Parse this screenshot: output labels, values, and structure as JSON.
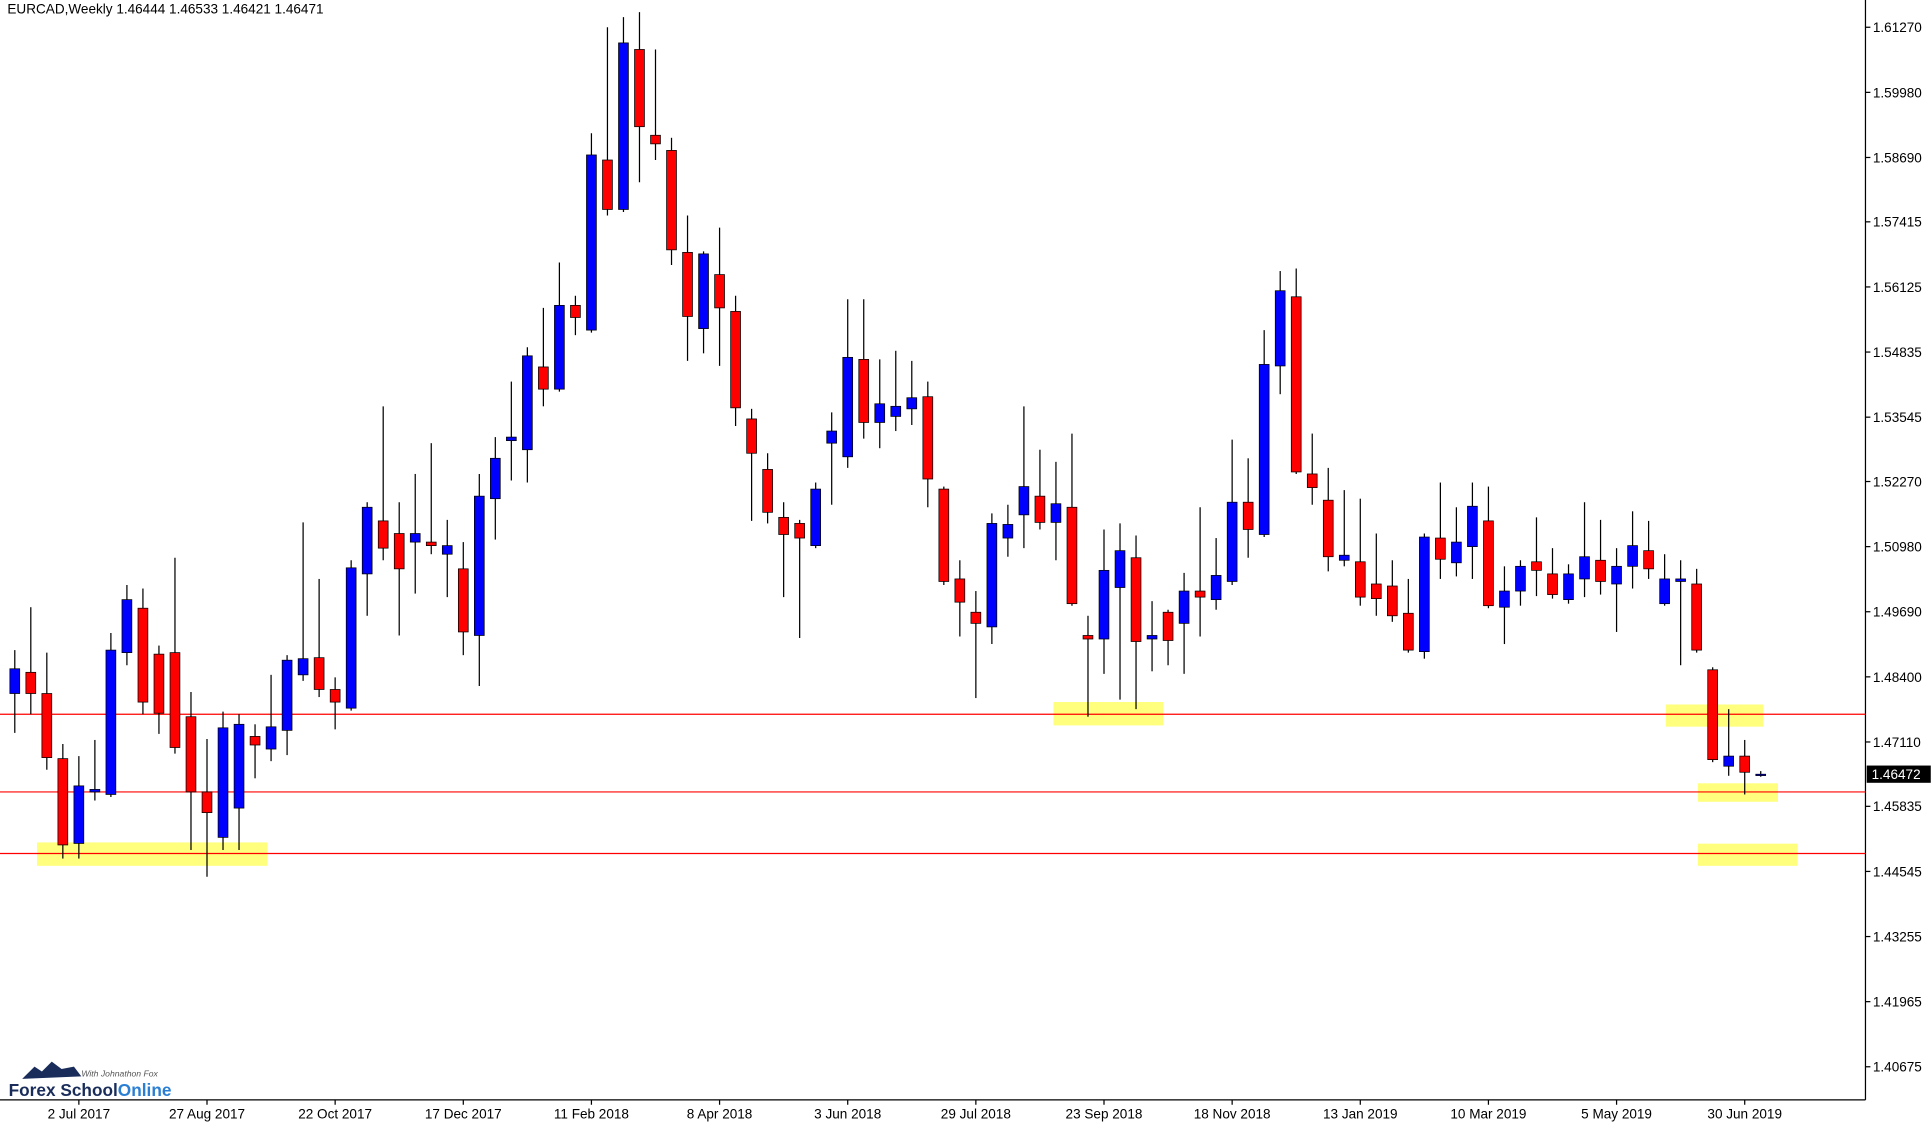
{
  "chart_data": {
    "type": "candlestick",
    "title": "EURCAD,Weekly  1.46444 1.46533 1.46421 1.46471",
    "up_color": "#0000ff",
    "down_color": "#ff0000",
    "wick_color": "#000000",
    "level_color": "#ff0000",
    "categories": [
      null,
      null,
      null,
      null,
      "2 Jul 2017",
      null,
      null,
      null,
      null,
      null,
      null,
      null,
      "27 Aug 2017",
      null,
      null,
      null,
      null,
      null,
      null,
      null,
      "22 Oct 2017",
      null,
      null,
      null,
      null,
      null,
      null,
      null,
      "17 Dec 2017",
      null,
      null,
      null,
      null,
      null,
      null,
      null,
      "11 Feb 2018",
      null,
      null,
      null,
      null,
      null,
      null,
      null,
      "8 Apr 2018",
      null,
      null,
      null,
      null,
      null,
      null,
      null,
      "3 Jun 2018",
      null,
      null,
      null,
      null,
      null,
      null,
      null,
      "29 Jul 2018",
      null,
      null,
      null,
      null,
      null,
      null,
      null,
      "23 Sep 2018",
      null,
      null,
      null,
      null,
      null,
      null,
      null,
      "18 Nov 2018",
      null,
      null,
      null,
      null,
      null,
      null,
      null,
      "13 Jan 2019",
      null,
      null,
      null,
      null,
      null,
      null,
      null,
      "10 Mar 2019",
      null,
      null,
      null,
      null,
      null,
      null,
      null,
      "5 May 2019",
      null,
      null,
      null,
      null,
      null,
      null,
      null,
      "30 Jun 2019",
      null
    ],
    "ohlc": [
      [
        1.4807,
        1.4893,
        1.4729,
        1.4856
      ],
      [
        1.4849,
        1.4978,
        1.4766,
        1.4807
      ],
      [
        1.4807,
        1.4888,
        1.4656,
        1.468
      ],
      [
        1.4678,
        1.4707,
        1.448,
        1.4507
      ],
      [
        1.451,
        1.4683,
        1.448,
        1.4624
      ],
      [
        1.4612,
        1.4715,
        1.4595,
        1.4617
      ],
      [
        1.4607,
        1.4927,
        1.4602,
        1.4893
      ],
      [
        1.4888,
        1.5022,
        1.4863,
        1.4993
      ],
      [
        1.4976,
        1.5015,
        1.4766,
        1.479
      ],
      [
        1.4885,
        1.4902,
        1.4727,
        1.4768
      ],
      [
        1.4888,
        1.5076,
        1.4688,
        1.47
      ],
      [
        1.4761,
        1.481,
        1.4497,
        1.4612
      ],
      [
        1.4612,
        1.4717,
        1.4444,
        1.4571
      ],
      [
        1.4522,
        1.4771,
        1.4497,
        1.4739
      ],
      [
        1.458,
        1.4766,
        1.4497,
        1.4746
      ],
      [
        1.4722,
        1.4746,
        1.4639,
        1.4705
      ],
      [
        1.4697,
        1.4844,
        1.4673,
        1.4741
      ],
      [
        1.4734,
        1.4883,
        1.4685,
        1.4873
      ],
      [
        1.4844,
        1.5146,
        1.4832,
        1.4876
      ],
      [
        1.4878,
        1.5034,
        1.48,
        1.4815
      ],
      [
        1.4815,
        1.4839,
        1.4736,
        1.479
      ],
      [
        1.4778,
        1.5071,
        1.4773,
        1.5056
      ],
      [
        1.5044,
        1.5186,
        1.4961,
        1.5176
      ],
      [
        1.5149,
        1.5376,
        1.5071,
        1.5095
      ],
      [
        1.5124,
        1.5186,
        1.4922,
        1.5054
      ],
      [
        1.5107,
        1.5242,
        1.5005,
        1.5124
      ],
      [
        1.5107,
        1.5303,
        1.5083,
        1.51
      ],
      [
        1.5083,
        1.5151,
        1.4998,
        1.51
      ],
      [
        1.5054,
        1.5107,
        1.4883,
        1.4929
      ],
      [
        1.4922,
        1.5242,
        1.4822,
        1.5198
      ],
      [
        1.5193,
        1.5315,
        1.5112,
        1.5273
      ],
      [
        1.5308,
        1.5425,
        1.5229,
        1.5315
      ],
      [
        1.529,
        1.5493,
        1.5225,
        1.5476
      ],
      [
        1.5454,
        1.5571,
        1.5376,
        1.541
      ],
      [
        1.541,
        1.5661,
        1.5405,
        1.5576
      ],
      [
        1.5576,
        1.5595,
        1.5517,
        1.5552
      ],
      [
        1.5527,
        1.5917,
        1.5522,
        1.5874
      ],
      [
        1.5864,
        1.6127,
        1.5754,
        1.5766
      ],
      [
        1.5766,
        1.6147,
        1.5761,
        1.6096
      ],
      [
        1.6083,
        1.6157,
        1.582,
        1.593
      ],
      [
        1.5913,
        1.6083,
        1.5864,
        1.5896
      ],
      [
        1.5883,
        1.5908,
        1.5656,
        1.5686
      ],
      [
        1.5681,
        1.5754,
        1.5466,
        1.5554
      ],
      [
        1.553,
        1.5683,
        1.5481,
        1.5678
      ],
      [
        1.5637,
        1.573,
        1.5456,
        1.5571
      ],
      [
        1.5564,
        1.5595,
        1.5337,
        1.5373
      ],
      [
        1.5351,
        1.5371,
        1.5149,
        1.5283
      ],
      [
        1.5251,
        1.5283,
        1.5144,
        1.5166
      ],
      [
        1.5156,
        1.5186,
        1.4998,
        1.5122
      ],
      [
        1.5144,
        1.5151,
        1.4917,
        1.5115
      ],
      [
        1.51,
        1.5225,
        1.5095,
        1.5212
      ],
      [
        1.5303,
        1.5364,
        1.5181,
        1.5327
      ],
      [
        1.5276,
        1.5588,
        1.5254,
        1.5473
      ],
      [
        1.5469,
        1.5588,
        1.5312,
        1.5344
      ],
      [
        1.5344,
        1.5469,
        1.5293,
        1.5381
      ],
      [
        1.5356,
        1.5486,
        1.5327,
        1.5376
      ],
      [
        1.5371,
        1.5466,
        1.5339,
        1.5393
      ],
      [
        1.5395,
        1.5425,
        1.5176,
        1.5232
      ],
      [
        1.5212,
        1.5217,
        1.5022,
        1.5029
      ],
      [
        1.5034,
        1.5071,
        1.492,
        1.4988
      ],
      [
        1.4968,
        1.501,
        1.4798,
        1.4946
      ],
      [
        1.4939,
        1.5164,
        1.4905,
        1.5144
      ],
      [
        1.5115,
        1.5181,
        1.5078,
        1.5142
      ],
      [
        1.5161,
        1.5376,
        1.5095,
        1.5217
      ],
      [
        1.5198,
        1.529,
        1.5132,
        1.5146
      ],
      [
        1.5146,
        1.5266,
        1.5071,
        1.5183
      ],
      [
        1.5176,
        1.5322,
        1.4981,
        1.4985
      ],
      [
        1.4922,
        1.4961,
        1.4761,
        1.4915
      ],
      [
        1.4915,
        1.5132,
        1.4846,
        1.5051
      ],
      [
        1.5017,
        1.5144,
        1.4795,
        1.509
      ],
      [
        1.5076,
        1.512,
        1.4776,
        1.491
      ],
      [
        1.4915,
        1.499,
        1.4851,
        1.4922
      ],
      [
        1.4968,
        1.4973,
        1.4863,
        1.4912
      ],
      [
        1.4946,
        1.5046,
        1.4846,
        1.501
      ],
      [
        1.501,
        1.5176,
        1.492,
        1.4998
      ],
      [
        1.4993,
        1.5115,
        1.4973,
        1.5041
      ],
      [
        1.5029,
        1.531,
        1.5022,
        1.5186
      ],
      [
        1.5186,
        1.5273,
        1.5076,
        1.5132
      ],
      [
        1.5122,
        1.5527,
        1.5117,
        1.5459
      ],
      [
        1.5456,
        1.5644,
        1.54,
        1.5605
      ],
      [
        1.5593,
        1.5649,
        1.5242,
        1.5246
      ],
      [
        1.5242,
        1.5322,
        1.5181,
        1.5215
      ],
      [
        1.519,
        1.5254,
        1.5049,
        1.5078
      ],
      [
        1.5071,
        1.521,
        1.5059,
        1.5081
      ],
      [
        1.5068,
        1.5193,
        1.4981,
        1.4998
      ],
      [
        1.5024,
        1.5124,
        1.4961,
        1.4995
      ],
      [
        1.502,
        1.5071,
        1.4949,
        1.4961
      ],
      [
        1.4966,
        1.5034,
        1.4888,
        1.4893
      ],
      [
        1.489,
        1.5124,
        1.4876,
        1.5117
      ],
      [
        1.5115,
        1.5225,
        1.5034,
        1.5073
      ],
      [
        1.5066,
        1.5176,
        1.5039,
        1.5107
      ],
      [
        1.5098,
        1.5225,
        1.5034,
        1.5178
      ],
      [
        1.5149,
        1.5217,
        1.4976,
        1.4981
      ],
      [
        1.4978,
        1.5059,
        1.4905,
        1.501
      ],
      [
        1.501,
        1.5071,
        1.4981,
        1.5059
      ],
      [
        1.5068,
        1.5156,
        1.5,
        1.5051
      ],
      [
        1.5044,
        1.5095,
        1.4995,
        1.5003
      ],
      [
        1.4993,
        1.5063,
        1.4985,
        1.5044
      ],
      [
        1.5034,
        1.5186,
        1.4998,
        1.5078
      ],
      [
        1.5071,
        1.5151,
        1.5003,
        1.5029
      ],
      [
        1.5024,
        1.5095,
        1.4929,
        1.5059
      ],
      [
        1.5059,
        1.5168,
        1.5015,
        1.51
      ],
      [
        1.509,
        1.5149,
        1.5034,
        1.5054
      ],
      [
        1.4985,
        1.5083,
        1.4981,
        1.5034
      ],
      [
        1.5029,
        1.5071,
        1.4863,
        1.5034
      ],
      [
        1.5024,
        1.5054,
        1.4888,
        1.4893
      ],
      [
        1.4854,
        1.4859,
        1.4671,
        1.4676
      ],
      [
        1.4663,
        1.4776,
        1.4644,
        1.4683
      ],
      [
        1.4683,
        1.4715,
        1.4607,
        1.4651
      ],
      [
        1.46444,
        1.46533,
        1.46421,
        1.46471
      ]
    ],
    "levels": [
      1.4766,
      1.4612,
      1.449
    ],
    "current_price": 1.46472,
    "ylim": [
      1.4002,
      1.6181
    ],
    "yticks": [
      {
        "value": 1.6127,
        "label": "1.61270"
      },
      {
        "value": 1.5998,
        "label": "1.59980"
      },
      {
        "value": 1.5869,
        "label": "1.58690"
      },
      {
        "value": 1.57415,
        "label": "1.57415"
      },
      {
        "value": 1.56125,
        "label": "1.56125"
      },
      {
        "value": 1.54835,
        "label": "1.54835"
      },
      {
        "value": 1.53545,
        "label": "1.53545"
      },
      {
        "value": 1.5227,
        "label": "1.52270"
      },
      {
        "value": 1.5098,
        "label": "1.50980"
      },
      {
        "value": 1.4969,
        "label": "1.49690"
      },
      {
        "value": 1.484,
        "label": "1.48400"
      },
      {
        "value": 1.4711,
        "label": "1.47110"
      },
      {
        "value": 1.45835,
        "label": "1.45835"
      },
      {
        "value": 1.44545,
        "label": "1.44545"
      },
      {
        "value": 1.43255,
        "label": "1.43255"
      },
      {
        "value": 1.41965,
        "label": "1.41965"
      },
      {
        "value": 1.40675,
        "label": "1.40675"
      }
    ]
  },
  "logo": {
    "name": "Forex School",
    "name_accent": "Online",
    "tagline": "With Johnathon Fox"
  }
}
